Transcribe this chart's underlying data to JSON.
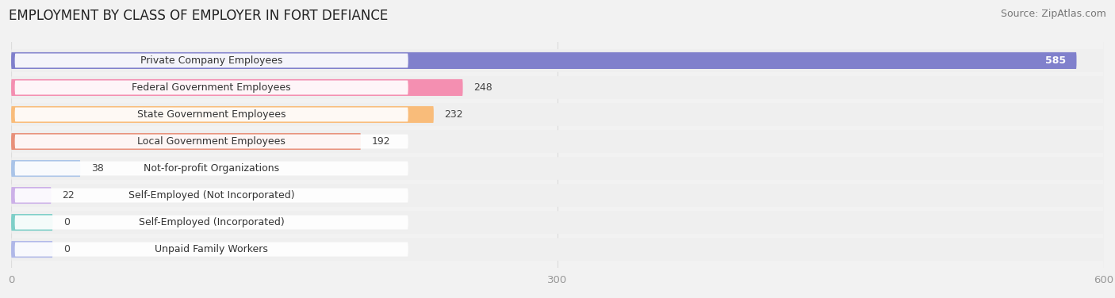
{
  "title": "EMPLOYMENT BY CLASS OF EMPLOYER IN FORT DEFIANCE",
  "source": "Source: ZipAtlas.com",
  "categories": [
    "Private Company Employees",
    "Federal Government Employees",
    "State Government Employees",
    "Local Government Employees",
    "Not-for-profit Organizations",
    "Self-Employed (Not Incorporated)",
    "Self-Employed (Incorporated)",
    "Unpaid Family Workers"
  ],
  "values": [
    585,
    248,
    232,
    192,
    38,
    22,
    0,
    0
  ],
  "bar_colors": [
    "#8080cc",
    "#f48fb1",
    "#f9bc7a",
    "#e8907a",
    "#aac4e8",
    "#ccb0e8",
    "#7ecfc8",
    "#b0b8e8"
  ],
  "xlim": [
    0,
    600
  ],
  "xticks": [
    0,
    300,
    600
  ],
  "background_color": "#f2f2f2",
  "row_bg_color": "#ffffff",
  "title_fontsize": 12,
  "source_fontsize": 9,
  "label_fontsize": 9,
  "value_fontsize": 9,
  "bar_height": 0.62,
  "value_inside_color": "white",
  "value_outside_color": "#444444",
  "label_text_color": "#333333",
  "grid_color": "#dddddd",
  "tick_color": "#999999"
}
